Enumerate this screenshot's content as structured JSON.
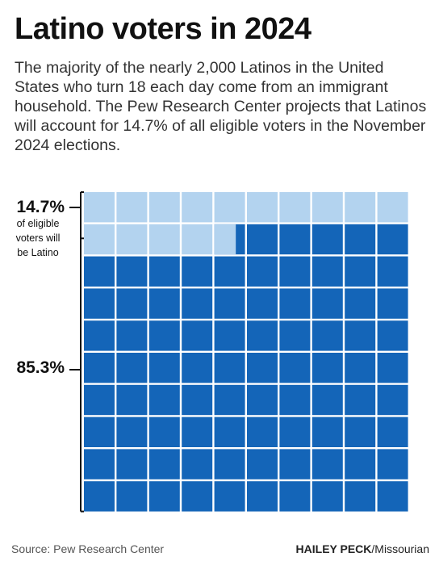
{
  "title": "Latino voters in 2024",
  "subtitle": "The majority of the nearly 2,000 Latinos in the United States who turn 18 each day come from an immigrant household. The Pew Research Center projects that Latinos will account for 14.7% of all eligible voters in the November 2024 elections.",
  "footer": {
    "source": "Source: Pew Research Center",
    "credit_name": "HAILEY PECK",
    "credit_org": "/Missourian"
  },
  "chart_data": {
    "type": "waffle",
    "total": 100,
    "series": [
      {
        "name": "of eligible voters will be Latino",
        "value": 14.7,
        "label": "14.7%",
        "color": "#b3d3ef"
      },
      {
        "name": "",
        "value": 85.3,
        "label": "85.3%",
        "color": "#1465b8"
      }
    ],
    "annotation_lines": [
      "of eligible",
      "voters will",
      "be Latino"
    ]
  }
}
